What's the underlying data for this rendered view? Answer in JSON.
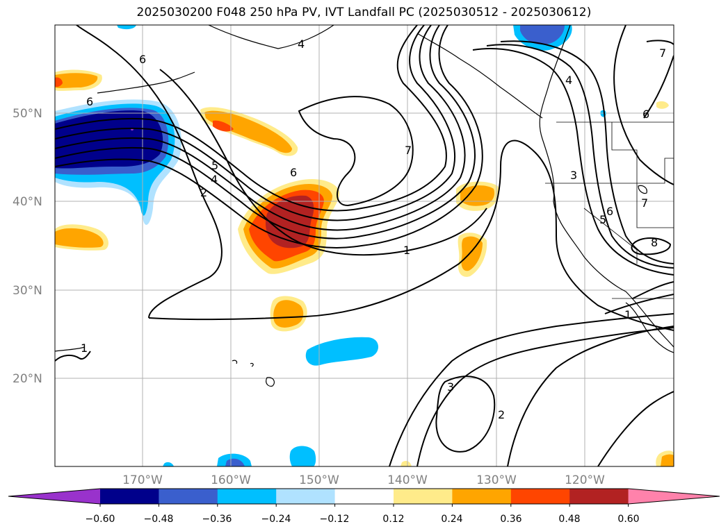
{
  "title": "2025030200 F048 250 hPa PV, IVT Landfall PC (2025030512 - 2025030612)",
  "map": {
    "lat_labels": [
      "50°N",
      "40°N",
      "30°N",
      "20°N"
    ],
    "lon_labels": [
      "170°W",
      "160°W",
      "150°W",
      "140°W",
      "130°W",
      "120°W"
    ],
    "contour_labels": [
      "6",
      "6",
      "4",
      "5",
      "4",
      "2",
      "6",
      "7",
      "1",
      "4",
      "3",
      "6",
      "5",
      "7",
      "8",
      "6",
      "7",
      "1",
      "3",
      "2",
      "1"
    ],
    "fill_colors": {
      "neg_extreme": "#9932cc",
      "neg_060": "#00008b",
      "neg_048": "#3a5fcd",
      "neg_036": "#00bfff",
      "neg_024": "#b0e2ff",
      "pos_012": "#ffeb8a",
      "pos_024": "#ffa500",
      "pos_036": "#ff4500",
      "pos_048": "#b22222",
      "pos_extreme": "#ff82ab"
    }
  },
  "colorbar": {
    "ticks": [
      "−0.60",
      "−0.48",
      "−0.36",
      "−0.24",
      "−0.12",
      "0.12",
      "0.24",
      "0.36",
      "0.48",
      "0.60"
    ],
    "colors": [
      "#9932cc",
      "#00008b",
      "#3a5fcd",
      "#00bfff",
      "#b0e2ff",
      "#ffffff",
      "#ffeb8a",
      "#ffa500",
      "#ff4500",
      "#b22222",
      "#ff82ab"
    ]
  }
}
